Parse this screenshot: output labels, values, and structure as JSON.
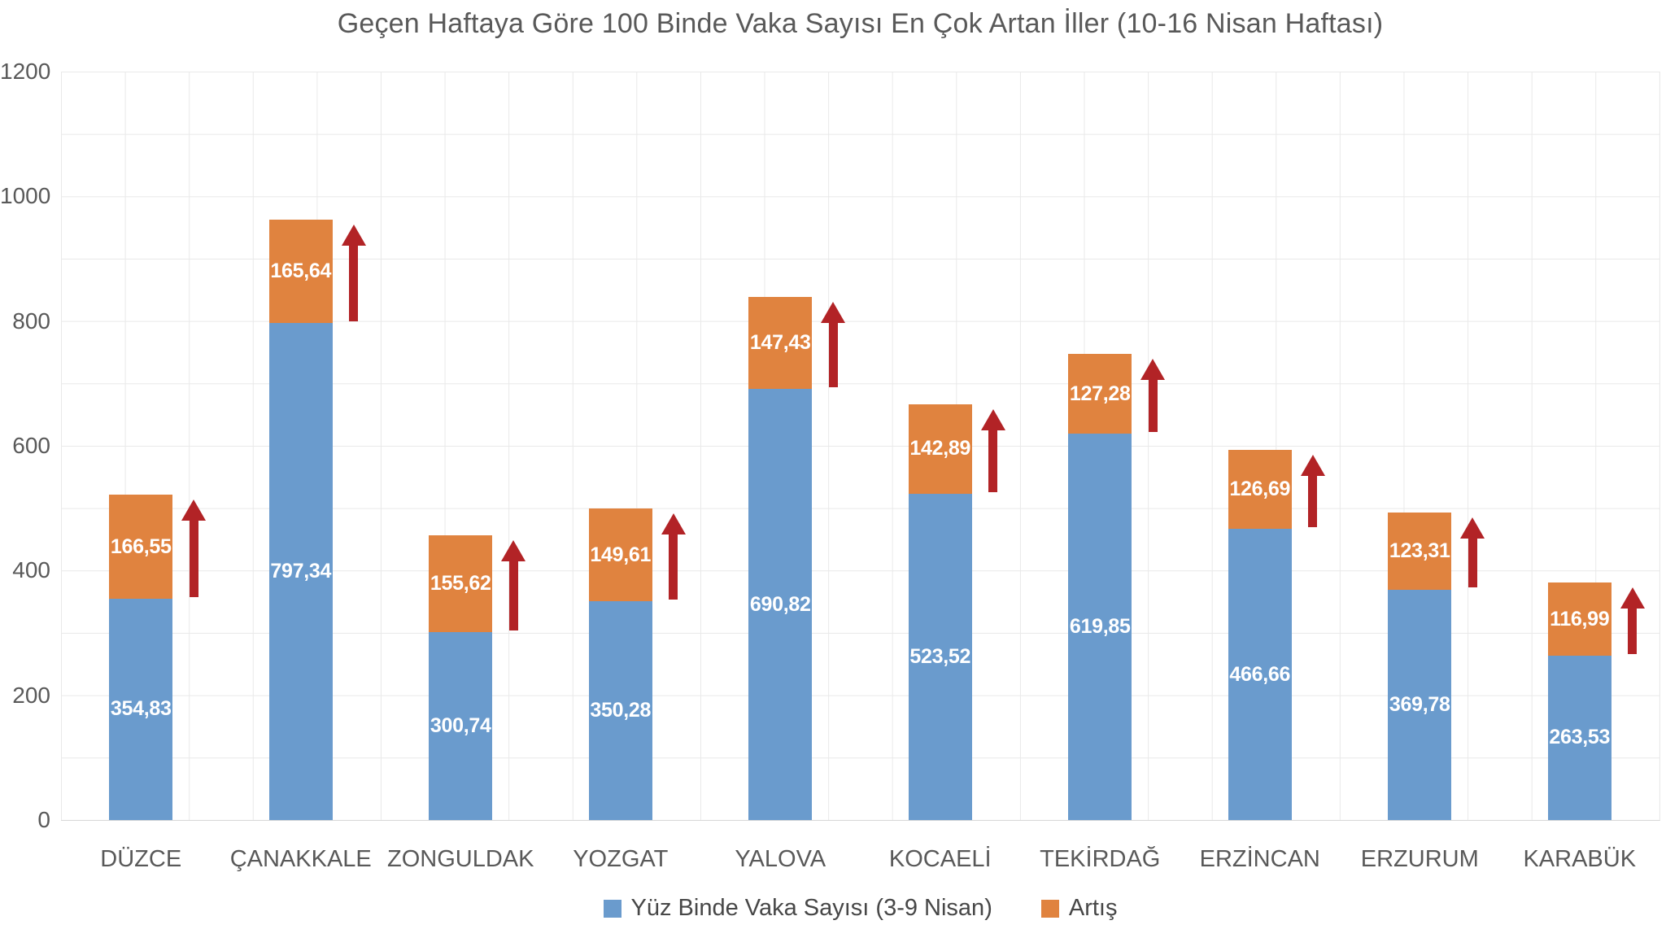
{
  "title": "Geçen Haftaya Göre 100 Binde Vaka Sayısı En Çok Artan İller (10-16 Nisan Haftası)",
  "colors": {
    "base": "#6A9BCD",
    "increase": "#E0833F",
    "arrow": "#B22326",
    "axis_text": "#595959",
    "data_label_text": "#FFFFFF"
  },
  "y_axis": {
    "min": 0,
    "max": 1200,
    "tick_step": 200,
    "tick_labels": [
      "0",
      "200",
      "400",
      "600",
      "800",
      "1000",
      "1200"
    ]
  },
  "legend": {
    "items": [
      {
        "label": "Yüz Binde Vaka Sayısı (3-9 Nisan)",
        "color_key": "base"
      },
      {
        "label": "Artış",
        "color_key": "increase"
      }
    ]
  },
  "chart_data": {
    "type": "bar",
    "stacked": true,
    "title": "Geçen Haftaya Göre 100 Binde Vaka Sayısı En Çok Artan İller (10-16 Nisan Haftası)",
    "categories": [
      "DÜZCE",
      "ÇANAKKALE",
      "ZONGULDAK",
      "YOZGAT",
      "YALOVA",
      "KOCAELİ",
      "TEKİRDAĞ",
      "ERZİNCAN",
      "ERZURUM",
      "KARABÜK"
    ],
    "series": [
      {
        "name": "Yüz Binde Vaka Sayısı (3-9 Nisan)",
        "values": [
          354.83,
          797.34,
          300.74,
          350.28,
          690.82,
          523.52,
          619.85,
          466.66,
          369.78,
          263.53
        ],
        "labels": [
          "354,83",
          "797,34",
          "300,74",
          "350,28",
          "690,82",
          "523,52",
          "619,85",
          "466,66",
          "369,78",
          "263,53"
        ]
      },
      {
        "name": "Artış",
        "values": [
          166.55,
          165.64,
          155.62,
          149.61,
          147.43,
          142.89,
          127.28,
          126.69,
          123.31,
          116.99
        ],
        "labels": [
          "166,55",
          "165,64",
          "155,62",
          "149,61",
          "147,43",
          "142,89",
          "127,28",
          "126,69",
          "123,31",
          "116,99"
        ]
      }
    ],
    "ylim": [
      0,
      1200
    ],
    "xlabel": "",
    "ylabel": "",
    "grid": "both-light-gray",
    "legend_position": "bottom-center",
    "annotations": "dark red upward arrow beside the Artış (increase) segment of every bar"
  }
}
